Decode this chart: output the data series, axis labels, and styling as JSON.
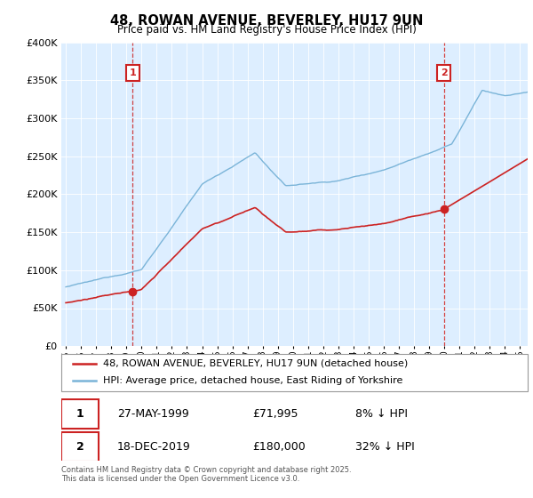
{
  "title": "48, ROWAN AVENUE, BEVERLEY, HU17 9UN",
  "subtitle": "Price paid vs. HM Land Registry's House Price Index (HPI)",
  "legend_line1": "48, ROWAN AVENUE, BEVERLEY, HU17 9UN (detached house)",
  "legend_line2": "HPI: Average price, detached house, East Riding of Yorkshire",
  "sale1_date": "27-MAY-1999",
  "sale1_price": "£71,995",
  "sale1_hpi": "8% ↓ HPI",
  "sale2_date": "18-DEC-2019",
  "sale2_price": "£180,000",
  "sale2_hpi": "32% ↓ HPI",
  "footer": "Contains HM Land Registry data © Crown copyright and database right 2025.\nThis data is licensed under the Open Government Licence v3.0.",
  "hpi_color": "#7ab4d8",
  "price_color": "#cc2222",
  "sale1_x": 1999.41,
  "sale1_y": 71995,
  "sale2_x": 2019.96,
  "sale2_y": 180000,
  "ylim": [
    0,
    400000
  ],
  "xlim_start": 1994.7,
  "xlim_end": 2025.5,
  "bg_color": "#ddeeff",
  "chart_bg": "#ddeeff",
  "grid_color": "#bbccdd"
}
